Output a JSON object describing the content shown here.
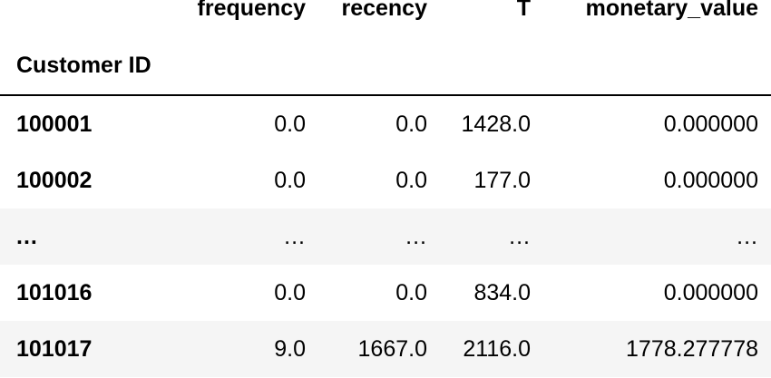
{
  "table": {
    "index_name": "Customer ID",
    "columns": [
      "frequency",
      "recency",
      "T",
      "monetary_value"
    ],
    "rows": [
      {
        "id": "100001",
        "cells": [
          "0.0",
          "0.0",
          "1428.0",
          "0.000000"
        ]
      },
      {
        "id": "100002",
        "cells": [
          "0.0",
          "0.0",
          "177.0",
          "0.000000"
        ]
      },
      {
        "id": "...",
        "cells": [
          "...",
          "...",
          "...",
          "..."
        ]
      },
      {
        "id": "101016",
        "cells": [
          "0.0",
          "0.0",
          "834.0",
          "0.000000"
        ]
      },
      {
        "id": "101017",
        "cells": [
          "9.0",
          "1667.0",
          "2116.0",
          "1778.277778"
        ]
      }
    ]
  }
}
